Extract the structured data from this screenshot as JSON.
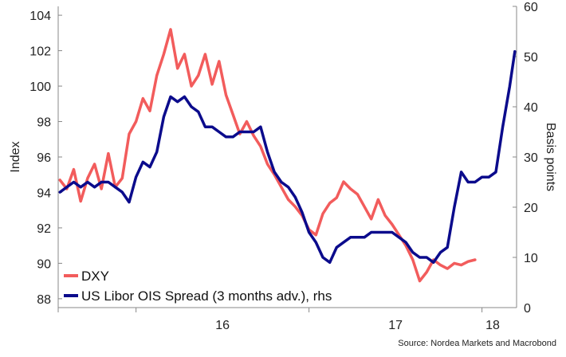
{
  "chart_data": {
    "type": "line",
    "title": "",
    "source": "Source: Nordea Markets and Macrobond",
    "grid": false,
    "legend": "bottom-left",
    "xaxis": {
      "ticks": [
        "16",
        "17",
        "18"
      ],
      "range": [
        2015.55,
        2018.2
      ]
    },
    "yaxis_left": {
      "label": "Index",
      "range": [
        87.5,
        104.5
      ],
      "ticks": [
        "104",
        "102",
        "100",
        "98",
        "96",
        "94",
        "92",
        "90",
        "88"
      ]
    },
    "yaxis_right": {
      "label": "Basis points",
      "range": [
        0,
        60
      ],
      "ticks": [
        "60",
        "50",
        "40",
        "30",
        "20",
        "10",
        "0"
      ]
    },
    "series": [
      {
        "name": "DXY",
        "axis": "left",
        "color": "#f25c5c",
        "x": [
          2015.56,
          2015.6,
          2015.64,
          2015.68,
          2015.72,
          2015.76,
          2015.8,
          2015.84,
          2015.88,
          2015.92,
          2015.96,
          2016.0,
          2016.04,
          2016.08,
          2016.12,
          2016.16,
          2016.2,
          2016.24,
          2016.28,
          2016.32,
          2016.36,
          2016.4,
          2016.44,
          2016.48,
          2016.52,
          2016.56,
          2016.6,
          2016.64,
          2016.68,
          2016.72,
          2016.76,
          2016.8,
          2016.84,
          2016.88,
          2016.92,
          2016.96,
          2017.0,
          2017.04,
          2017.08,
          2017.12,
          2017.16,
          2017.2,
          2017.24,
          2017.28,
          2017.32,
          2017.36,
          2017.4,
          2017.44,
          2017.48,
          2017.52,
          2017.56,
          2017.6,
          2017.64,
          2017.68,
          2017.72,
          2017.76,
          2017.8,
          2017.84,
          2017.88,
          2017.92,
          2017.96
        ],
        "values": [
          94.7,
          94.2,
          95.3,
          93.5,
          94.8,
          95.6,
          94.2,
          96.2,
          94.3,
          94.8,
          97.3,
          98.0,
          99.3,
          98.6,
          100.6,
          101.8,
          103.2,
          101.0,
          101.8,
          100.0,
          100.6,
          101.8,
          100.1,
          101.4,
          99.5,
          98.4,
          97.3,
          98.0,
          97.2,
          96.6,
          95.6,
          95.0,
          94.3,
          93.6,
          93.2,
          92.7,
          91.9,
          91.6,
          92.8,
          93.4,
          93.7,
          94.6,
          94.2,
          93.9,
          93.2,
          92.5,
          93.6,
          92.7,
          92.2,
          91.6,
          91.0,
          90.2,
          89.0,
          89.5,
          90.2,
          89.9,
          89.7,
          90.0,
          89.9,
          90.1,
          90.2
        ]
      },
      {
        "name": "US Libor OIS Spread (3 months adv.), rhs",
        "axis": "right",
        "color": "#0b0b8c",
        "x": [
          2015.56,
          2015.6,
          2015.64,
          2015.68,
          2015.72,
          2015.76,
          2015.8,
          2015.84,
          2015.88,
          2015.92,
          2015.96,
          2016.0,
          2016.04,
          2016.08,
          2016.12,
          2016.16,
          2016.2,
          2016.24,
          2016.28,
          2016.32,
          2016.36,
          2016.4,
          2016.44,
          2016.48,
          2016.52,
          2016.56,
          2016.6,
          2016.64,
          2016.68,
          2016.72,
          2016.76,
          2016.8,
          2016.84,
          2016.88,
          2016.92,
          2016.96,
          2017.0,
          2017.04,
          2017.08,
          2017.12,
          2017.16,
          2017.2,
          2017.24,
          2017.28,
          2017.32,
          2017.36,
          2017.4,
          2017.44,
          2017.48,
          2017.52,
          2017.56,
          2017.6,
          2017.64,
          2017.68,
          2017.72,
          2017.76,
          2017.8,
          2017.84,
          2017.88,
          2017.92,
          2017.96,
          2018.0,
          2018.04,
          2018.08,
          2018.12,
          2018.16,
          2018.19
        ],
        "values": [
          23,
          24,
          25,
          24,
          25,
          24,
          25,
          25,
          24,
          23,
          21,
          26,
          29,
          28,
          31,
          38,
          42,
          41,
          42,
          40,
          39,
          36,
          36,
          35,
          34,
          34,
          35,
          35,
          35,
          36,
          31,
          27,
          25,
          24,
          22,
          19,
          15,
          13,
          10,
          9,
          12,
          13,
          14,
          14,
          14,
          15,
          15,
          15,
          15,
          14,
          13,
          11,
          10,
          10,
          9,
          11,
          12,
          20,
          27,
          25,
          25,
          26,
          26,
          27,
          36,
          44,
          51
        ]
      }
    ]
  }
}
